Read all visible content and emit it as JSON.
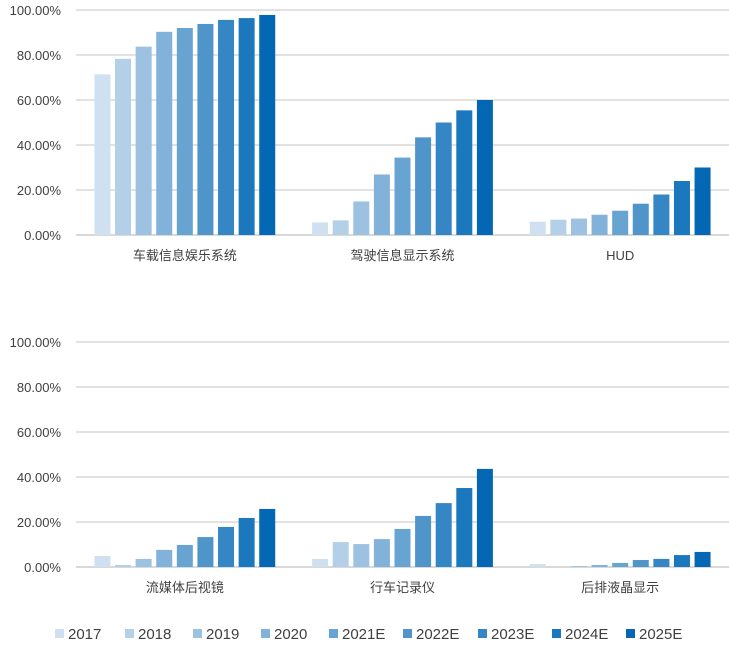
{
  "chart_data": [
    {
      "type": "bar",
      "categories": [
        "车载信息娱乐系统",
        "驾驶信息显示系统",
        "HUD"
      ],
      "ylim": [
        0,
        100
      ],
      "yticks": [
        "0.00%",
        "20.00%",
        "40.00%",
        "60.00%",
        "80.00%",
        "100.00%"
      ],
      "grid": true,
      "series": [
        {
          "name": "2017",
          "values": [
            71.4,
            5.6,
            5.9
          ]
        },
        {
          "name": "2018",
          "values": [
            78.3,
            6.5,
            6.8
          ]
        },
        {
          "name": "2019",
          "values": [
            83.7,
            14.9,
            7.3
          ]
        },
        {
          "name": "2020",
          "values": [
            90.3,
            26.9,
            9.0
          ]
        },
        {
          "name": "2021E",
          "values": [
            92.0,
            34.4,
            10.8
          ]
        },
        {
          "name": "2022E",
          "values": [
            93.8,
            43.4,
            13.9
          ]
        },
        {
          "name": "2023E",
          "values": [
            95.6,
            50.0,
            18.0
          ]
        },
        {
          "name": "2024E",
          "values": [
            96.4,
            55.4,
            24.0
          ]
        },
        {
          "name": "2025E",
          "values": [
            97.8,
            60.0,
            30.0
          ]
        }
      ]
    },
    {
      "type": "bar",
      "categories": [
        "流媒体后视镜",
        "行车记录仪",
        "后排液晶显示"
      ],
      "ylim": [
        0,
        100
      ],
      "yticks": [
        "0.00%",
        "20.00%",
        "40.00%",
        "60.00%",
        "80.00%",
        "100.00%"
      ],
      "grid": true,
      "series": [
        {
          "name": "2017",
          "values": [
            4.9,
            3.6,
            1.3
          ]
        },
        {
          "name": "2018",
          "values": [
            0.9,
            11.1,
            0.0
          ]
        },
        {
          "name": "2019",
          "values": [
            3.6,
            10.2,
            0.4
          ]
        },
        {
          "name": "2020",
          "values": [
            7.6,
            12.4,
            0.9
          ]
        },
        {
          "name": "2021E",
          "values": [
            9.8,
            16.9,
            1.8
          ]
        },
        {
          "name": "2022E",
          "values": [
            13.3,
            22.7,
            3.1
          ]
        },
        {
          "name": "2023E",
          "values": [
            17.8,
            28.4,
            3.6
          ]
        },
        {
          "name": "2024E",
          "values": [
            21.8,
            35.1,
            5.3
          ]
        },
        {
          "name": "2025E",
          "values": [
            25.8,
            43.6,
            6.7
          ]
        }
      ]
    }
  ],
  "legend": {
    "placement": "bottom",
    "labels": [
      "2017",
      "2018",
      "2019",
      "2020",
      "2021E",
      "2022E",
      "2023E",
      "2024E",
      "2025E"
    ]
  },
  "colors": [
    "#cfe1f0",
    "#b4d0e8",
    "#9cc1e1",
    "#82b1d9",
    "#68a4d1",
    "#4f95c9",
    "#3586c4",
    "#1c78bd",
    "#0367b4"
  ]
}
